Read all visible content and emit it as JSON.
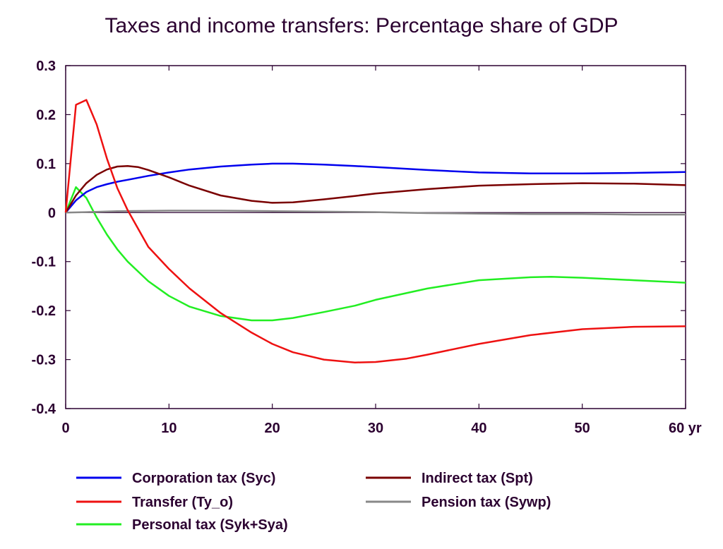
{
  "chart_data": {
    "type": "line",
    "title": "Taxes and income transfers: Percentage share of GDP",
    "xlabel": "",
    "ylabel": "",
    "xlim": [
      0,
      60
    ],
    "ylim": [
      -0.4,
      0.3
    ],
    "x_ticks": [
      0,
      10,
      20,
      30,
      40,
      50,
      60
    ],
    "x_tick_labels": [
      "0",
      "10",
      "20",
      "30",
      "40",
      "50",
      "60 yr"
    ],
    "y_ticks": [
      0.3,
      0.2,
      0.1,
      0,
      -0.1,
      -0.2,
      -0.3,
      -0.4
    ],
    "y_tick_labels": [
      "0.3",
      "0.2",
      "0.1",
      "0",
      "-0.1",
      "-0.2",
      "-0.3",
      "-0.4"
    ],
    "grid": false,
    "legend_position": "bottom",
    "series": [
      {
        "name": "Corporation tax (Syc)",
        "color": "#0000ee",
        "points": [
          [
            0,
            0
          ],
          [
            1,
            0.025
          ],
          [
            2,
            0.042
          ],
          [
            3,
            0.052
          ],
          [
            4,
            0.058
          ],
          [
            5,
            0.063
          ],
          [
            6,
            0.067
          ],
          [
            8,
            0.075
          ],
          [
            10,
            0.082
          ],
          [
            12,
            0.088
          ],
          [
            15,
            0.094
          ],
          [
            18,
            0.098
          ],
          [
            20,
            0.1
          ],
          [
            22,
            0.1
          ],
          [
            25,
            0.098
          ],
          [
            28,
            0.095
          ],
          [
            30,
            0.093
          ],
          [
            35,
            0.087
          ],
          [
            40,
            0.082
          ],
          [
            45,
            0.08
          ],
          [
            50,
            0.08
          ],
          [
            55,
            0.081
          ],
          [
            60,
            0.083
          ]
        ]
      },
      {
        "name": "Indirect tax (Spt)",
        "color": "#7a0000",
        "points": [
          [
            0,
            0
          ],
          [
            1,
            0.035
          ],
          [
            2,
            0.06
          ],
          [
            3,
            0.077
          ],
          [
            4,
            0.088
          ],
          [
            5,
            0.094
          ],
          [
            6,
            0.095
          ],
          [
            7,
            0.093
          ],
          [
            8,
            0.087
          ],
          [
            10,
            0.072
          ],
          [
            12,
            0.055
          ],
          [
            15,
            0.035
          ],
          [
            18,
            0.024
          ],
          [
            20,
            0.02
          ],
          [
            22,
            0.021
          ],
          [
            25,
            0.027
          ],
          [
            28,
            0.034
          ],
          [
            30,
            0.039
          ],
          [
            35,
            0.048
          ],
          [
            40,
            0.055
          ],
          [
            45,
            0.058
          ],
          [
            50,
            0.06
          ],
          [
            55,
            0.059
          ],
          [
            60,
            0.056
          ]
        ]
      },
      {
        "name": "Transfer (Ty_o)",
        "color": "#ee1111",
        "points": [
          [
            0,
            0
          ],
          [
            1,
            0.22
          ],
          [
            2,
            0.23
          ],
          [
            3,
            0.18
          ],
          [
            4,
            0.11
          ],
          [
            5,
            0.05
          ],
          [
            6,
            0.005
          ],
          [
            8,
            -0.07
          ],
          [
            10,
            -0.115
          ],
          [
            12,
            -0.155
          ],
          [
            15,
            -0.205
          ],
          [
            18,
            -0.245
          ],
          [
            20,
            -0.268
          ],
          [
            22,
            -0.285
          ],
          [
            25,
            -0.3
          ],
          [
            28,
            -0.306
          ],
          [
            30,
            -0.305
          ],
          [
            33,
            -0.298
          ],
          [
            35,
            -0.29
          ],
          [
            40,
            -0.268
          ],
          [
            45,
            -0.25
          ],
          [
            50,
            -0.238
          ],
          [
            55,
            -0.233
          ],
          [
            60,
            -0.232
          ]
        ]
      },
      {
        "name": "Pension tax (Sywp)",
        "color": "#888888",
        "points": [
          [
            0,
            0
          ],
          [
            2,
            0.001
          ],
          [
            5,
            0.003
          ],
          [
            10,
            0.004
          ],
          [
            15,
            0.004
          ],
          [
            20,
            0.003
          ],
          [
            25,
            0.002
          ],
          [
            30,
            0.001
          ],
          [
            35,
            -0.001
          ],
          [
            40,
            -0.002
          ],
          [
            45,
            -0.003
          ],
          [
            50,
            -0.003
          ],
          [
            55,
            -0.004
          ],
          [
            60,
            -0.004
          ]
        ]
      },
      {
        "name": "Personal tax (Syk+Sya)",
        "color": "#22ee22",
        "points": [
          [
            0,
            0
          ],
          [
            1,
            0.052
          ],
          [
            2,
            0.03
          ],
          [
            3,
            -0.01
          ],
          [
            4,
            -0.045
          ],
          [
            5,
            -0.075
          ],
          [
            6,
            -0.1
          ],
          [
            8,
            -0.14
          ],
          [
            10,
            -0.17
          ],
          [
            12,
            -0.192
          ],
          [
            15,
            -0.211
          ],
          [
            18,
            -0.22
          ],
          [
            20,
            -0.22
          ],
          [
            22,
            -0.215
          ],
          [
            25,
            -0.203
          ],
          [
            28,
            -0.19
          ],
          [
            30,
            -0.178
          ],
          [
            35,
            -0.155
          ],
          [
            40,
            -0.138
          ],
          [
            45,
            -0.132
          ],
          [
            47,
            -0.131
          ],
          [
            50,
            -0.133
          ],
          [
            55,
            -0.138
          ],
          [
            60,
            -0.143
          ]
        ]
      }
    ]
  }
}
